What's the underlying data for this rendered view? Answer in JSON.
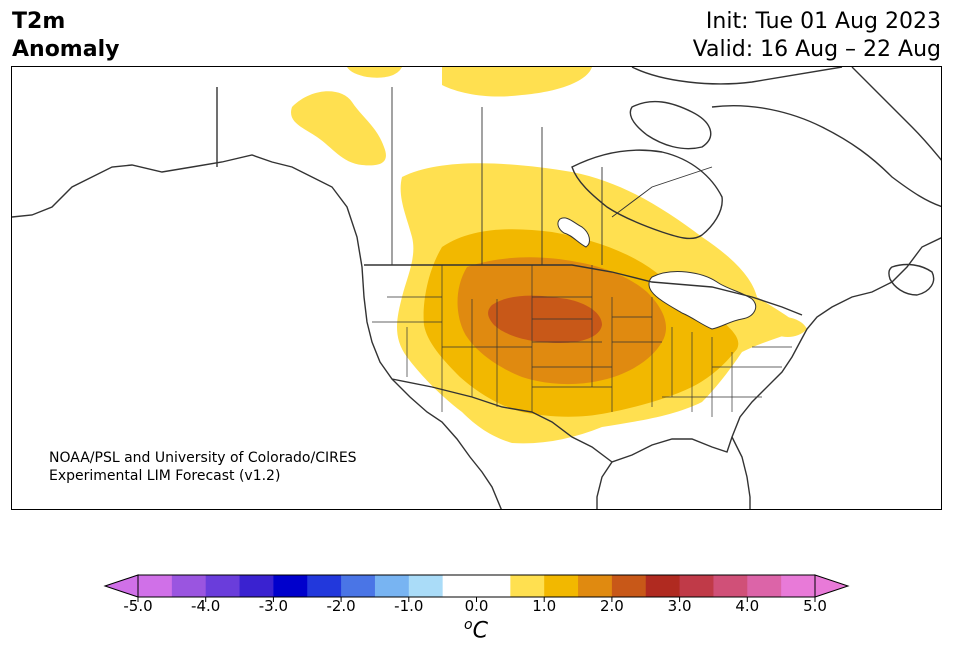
{
  "title": {
    "line1": "T2m",
    "line2": "Anomaly"
  },
  "subtitle": {
    "init": "Init: Tue 01 Aug 2023",
    "valid": "Valid: 16 Aug – 22 Aug"
  },
  "credit": {
    "line1": "NOAA/PSL and University of Colorado/CIRES",
    "line2": "Experimental LIM Forecast (v1.2)"
  },
  "colorbar": {
    "unit_base": "C",
    "unit_super": "o",
    "tick_labels": [
      "-5.0",
      "-4.0",
      "-3.0",
      "-2.0",
      "-1.0",
      "0.0",
      "1.0",
      "2.0",
      "3.0",
      "4.0",
      "5.0"
    ],
    "colors": [
      "#d070e8",
      "#9a55e0",
      "#6a3ddb",
      "#3a22d0",
      "#0000cc",
      "#2238dc",
      "#4a75e6",
      "#78b4f2",
      "#aadcf8",
      "#ffffff",
      "#ffffff",
      "#ffe050",
      "#f2b800",
      "#e08a10",
      "#c85818",
      "#b02a20",
      "#c03a48",
      "#d05078",
      "#dc64a8",
      "#e87ad8"
    ],
    "under_color": "#d070e8",
    "over_color": "#e87ad8"
  },
  "legend_colors": {
    "anom_0_5": "#ffe050",
    "anom_1_0": "#f2b800",
    "anom_1_5": "#e08a10",
    "anom_2_0": "#c85818",
    "coast": "#333333"
  }
}
